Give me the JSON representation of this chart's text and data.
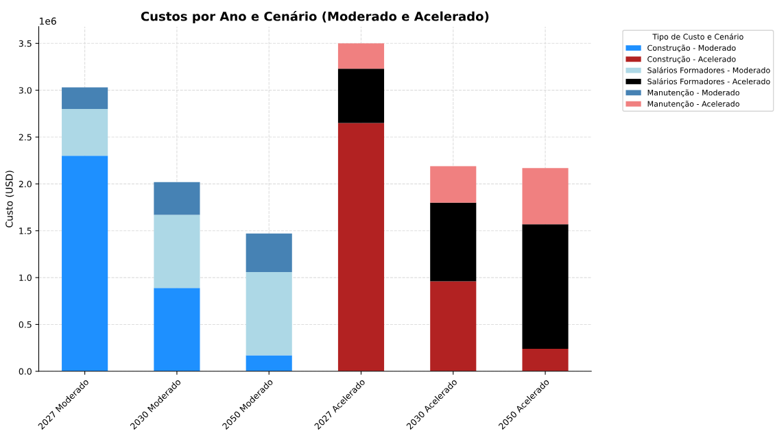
{
  "chart_data": {
    "type": "bar",
    "stacked": true,
    "title": "Custos por Ano e Cenário (Moderado e Acelerado)",
    "ylabel": "Custo (USD)",
    "legend_title": "Tipo de Custo e Cenário",
    "legend": "top right",
    "grid": true,
    "annotations": [
      "1e6"
    ],
    "categories": [
      "2027 Moderado",
      "2030 Moderado",
      "2050 Moderado",
      "2027 Acelerado",
      "2030 Acelerado",
      "2050 Acelerado"
    ],
    "ylim": [
      0,
      3.68
    ],
    "yticks": [
      {
        "value": 0,
        "label": "0.0"
      },
      {
        "value": 0.5,
        "label": "0.5"
      },
      {
        "value": 1,
        "label": "1.0"
      },
      {
        "value": 1.5,
        "label": "1.5"
      },
      {
        "value": 2,
        "label": "2.0"
      },
      {
        "value": 2.5,
        "label": "2.5"
      },
      {
        "value": 3,
        "label": "3.0"
      },
      {
        "value": 3.5,
        "label": "3.5"
      }
    ],
    "series": [
      {
        "name": "Construção - Moderado",
        "color": "#1e90ff",
        "values": [
          2.3,
          0.89,
          0.17,
          null,
          null,
          null
        ]
      },
      {
        "name": "Construção - Acelerado",
        "color": "#b22222",
        "values": [
          null,
          null,
          null,
          2.65,
          0.96,
          0.24
        ]
      },
      {
        "name": "Salários Formadores - Moderado",
        "color": "#add8e6",
        "values": [
          0.5,
          0.78,
          0.89,
          null,
          null,
          null
        ]
      },
      {
        "name": "Salários Formadores - Acelerado",
        "color": "#000000",
        "values": [
          null,
          null,
          null,
          0.58,
          0.84,
          1.33
        ]
      },
      {
        "name": "Manutenção - Moderado",
        "color": "#4682b4",
        "values": [
          0.23,
          0.35,
          0.41,
          null,
          null,
          null
        ]
      },
      {
        "name": "Manutenção - Acelerado",
        "color": "#f08080",
        "values": [
          null,
          null,
          null,
          0.27,
          0.39,
          0.6
        ]
      }
    ]
  }
}
